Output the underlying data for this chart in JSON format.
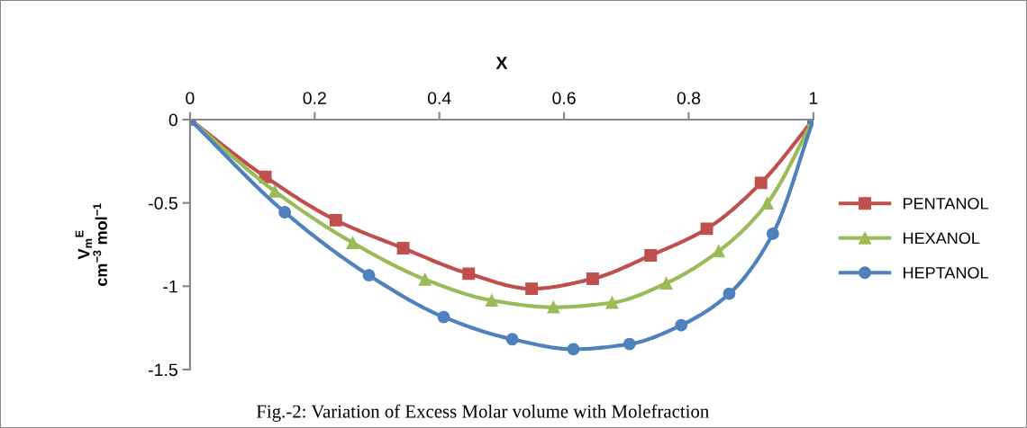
{
  "chart_data": {
    "type": "line",
    "xlabel": "X",
    "ylabel": "V$_{m}$$^{E}$\ncm$^{−3}$ mol$^{−1}$",
    "xlim": [
      0,
      1
    ],
    "xticks": [
      0,
      0.2,
      0.4,
      0.6,
      0.8,
      1
    ],
    "ylim": [
      -1.5,
      0
    ],
    "yticks": [
      0,
      -0.5,
      -1,
      -1.5
    ],
    "grid": false,
    "legend": "right",
    "line_style": "solid",
    "series": [
      {
        "name": "PENTANOL",
        "color": "#c0504d",
        "marker": "square",
        "x": [
          0,
          0.121,
          0.234,
          0.342,
          0.447,
          0.548,
          0.646,
          0.739,
          0.829,
          0.916,
          1
        ],
        "values": [
          0,
          -0.344,
          -0.604,
          -0.772,
          -0.925,
          -1.015,
          -0.955,
          -0.815,
          -0.655,
          -0.38,
          0
        ]
      },
      {
        "name": "HEXANOL",
        "color": "#9bbb59",
        "marker": "triangle",
        "x": [
          0,
          0.136,
          0.261,
          0.377,
          0.484,
          0.583,
          0.677,
          0.764,
          0.848,
          0.926,
          1
        ],
        "values": [
          0,
          -0.43,
          -0.739,
          -0.959,
          -1.085,
          -1.126,
          -1.099,
          -0.982,
          -0.79,
          -0.502,
          0
        ]
      },
      {
        "name": "HEPTANOL",
        "color": "#4f81bd",
        "marker": "circle",
        "x": [
          0,
          0.152,
          0.287,
          0.407,
          0.517,
          0.615,
          0.705,
          0.788,
          0.865,
          0.935,
          1
        ],
        "values": [
          0,
          -0.556,
          -0.934,
          -1.185,
          -1.318,
          -1.378,
          -1.347,
          -1.234,
          -1.045,
          -0.685,
          0
        ]
      }
    ],
    "annotations": [
      "Fig.-2: Variation of Excess Molar volume with Molefraction"
    ]
  }
}
